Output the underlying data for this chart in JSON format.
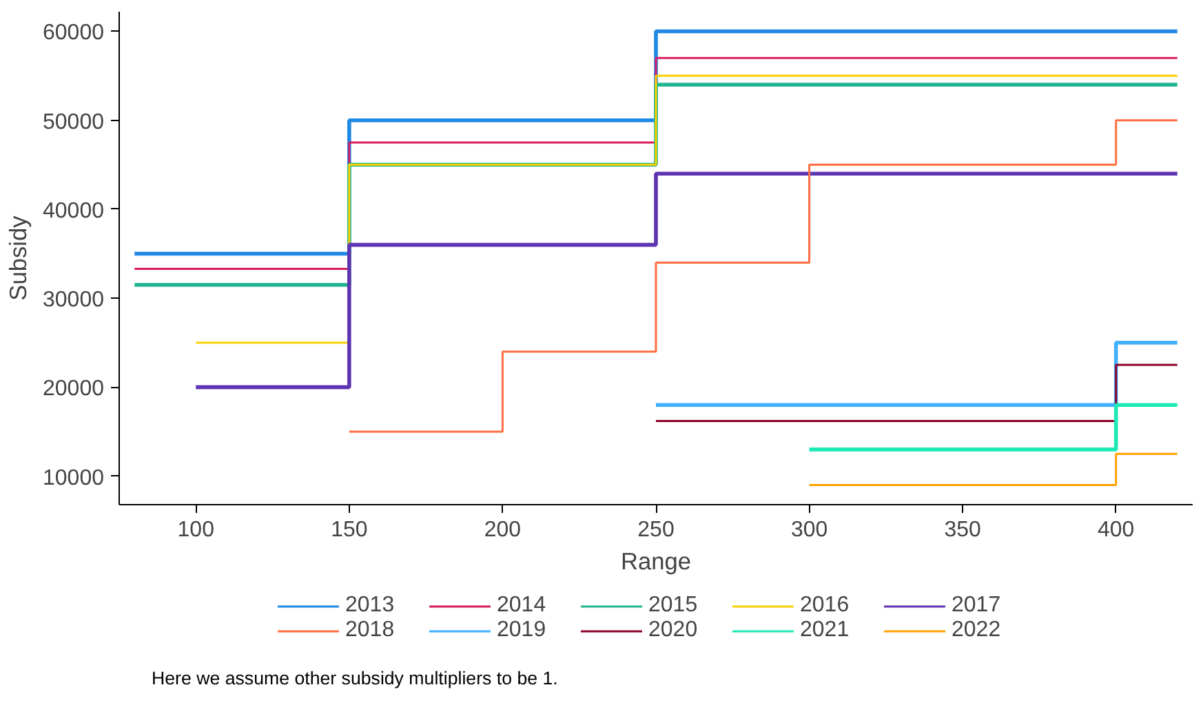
{
  "chart_data": {
    "type": "step",
    "xlabel": "Range",
    "ylabel": "Subsidy",
    "xlim": [
      75,
      425
    ],
    "ylim": [
      6800,
      62200
    ],
    "xticks": [
      100,
      150,
      200,
      250,
      300,
      350,
      400
    ],
    "yticks": [
      10000,
      20000,
      30000,
      40000,
      50000,
      60000
    ],
    "grid": false,
    "legend": "bottom",
    "marker": "none",
    "line_style": "solid",
    "annotations": [
      "Here we assume other subsidy multipliers to be 1."
    ],
    "series": [
      {
        "name": "2013",
        "color": "#1e88e5",
        "x": [
          80,
          150,
          250,
          420
        ],
        "values": [
          35000,
          50000,
          60000,
          60000
        ]
      },
      {
        "name": "2014",
        "color": "#d81b60",
        "x": [
          80,
          150,
          250,
          420
        ],
        "values": [
          33300,
          47500,
          57000,
          57000
        ]
      },
      {
        "name": "2015",
        "color": "#1fb58f",
        "x": [
          80,
          150,
          250,
          420
        ],
        "values": [
          31500,
          45000,
          54000,
          54000
        ]
      },
      {
        "name": "2016",
        "color": "#ffd000",
        "x": [
          100,
          150,
          250,
          420
        ],
        "values": [
          25000,
          45000,
          55000,
          55000
        ]
      },
      {
        "name": "2017",
        "color": "#5e35b1",
        "x": [
          100,
          150,
          250,
          420
        ],
        "values": [
          20000,
          36000,
          44000,
          44000
        ]
      },
      {
        "name": "2018",
        "color": "#ff6e40",
        "x": [
          150,
          200,
          250,
          300,
          400,
          420
        ],
        "values": [
          15000,
          24000,
          34000,
          45000,
          50000,
          50000
        ]
      },
      {
        "name": "2019",
        "color": "#40b0ff",
        "x": [
          250,
          400,
          420
        ],
        "values": [
          18000,
          25000,
          25000
        ]
      },
      {
        "name": "2020",
        "color": "#8b0026",
        "x": [
          250,
          400,
          420
        ],
        "values": [
          16200,
          22500,
          22500
        ]
      },
      {
        "name": "2021",
        "color": "#1de9b6",
        "x": [
          300,
          400,
          420
        ],
        "values": [
          13000,
          18000,
          18000
        ]
      },
      {
        "name": "2022",
        "color": "#ffa000",
        "x": [
          300,
          400,
          420
        ],
        "values": [
          9000,
          12500,
          12500
        ]
      }
    ]
  }
}
